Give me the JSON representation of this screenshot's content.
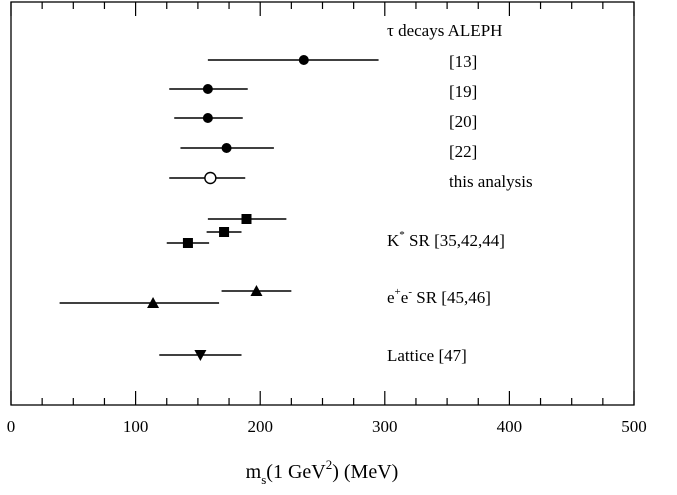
{
  "chart_data": {
    "type": "scatter",
    "title": "",
    "xlabel": "m_s(1 GeV^2) (MeV)",
    "ylabel": "",
    "xlim": [
      0,
      500
    ],
    "x_ticks": [
      "0",
      "100",
      "200",
      "300",
      "400",
      "500"
    ],
    "grid": false,
    "groups": [
      {
        "label": "τ decays ALEPH",
        "marker": "filled-circle",
        "points": [
          {
            "label": "[13]",
            "value": 235,
            "low": 158,
            "high": 295
          },
          {
            "label": "[19]",
            "value": 158,
            "low": 127,
            "high": 190
          },
          {
            "label": "[20]",
            "value": 158,
            "low": 131,
            "high": 186
          },
          {
            "label": "[22]",
            "value": 173,
            "low": 136,
            "high": 211
          }
        ]
      },
      {
        "label": "this analysis",
        "marker": "open-circle",
        "points": [
          {
            "value": 160,
            "low": 127,
            "high": 188
          }
        ]
      },
      {
        "label": "K* SR [35,42,44]",
        "marker": "filled-square",
        "points": [
          {
            "value": 189,
            "low": 158,
            "high": 221
          },
          {
            "value": 171,
            "low": 157,
            "high": 185
          },
          {
            "value": 142,
            "low": 125,
            "high": 159
          }
        ]
      },
      {
        "label": "e+e- SR [45,46]",
        "marker": "filled-triangle-up",
        "points": [
          {
            "value": 197,
            "low": 169,
            "high": 225
          },
          {
            "value": 114,
            "low": 39,
            "high": 167
          }
        ]
      },
      {
        "label": "Lattice [47]",
        "marker": "filled-triangle-down",
        "points": [
          {
            "value": 152,
            "low": 119,
            "high": 185
          }
        ]
      }
    ],
    "labels": {
      "tau": "τ decays ALEPH",
      "ref13": "[13]",
      "ref19": "[19]",
      "ref20": "[20]",
      "ref22": "[22]",
      "this": "this analysis",
      "kstar_main": "K",
      "kstar_sup": "*",
      "kstar_rest": " SR [35,42,44]",
      "ee_e1": "e",
      "ee_plus": "+",
      "ee_e2": "e",
      "ee_minus": "-",
      "ee_rest": " SR [45,46]",
      "lattice": "Lattice [47]",
      "xlabel_m": "m",
      "xlabel_sub": "s",
      "xlabel_mid": "(1 GeV",
      "xlabel_sup": "2",
      "xlabel_end": ") (MeV)"
    }
  }
}
